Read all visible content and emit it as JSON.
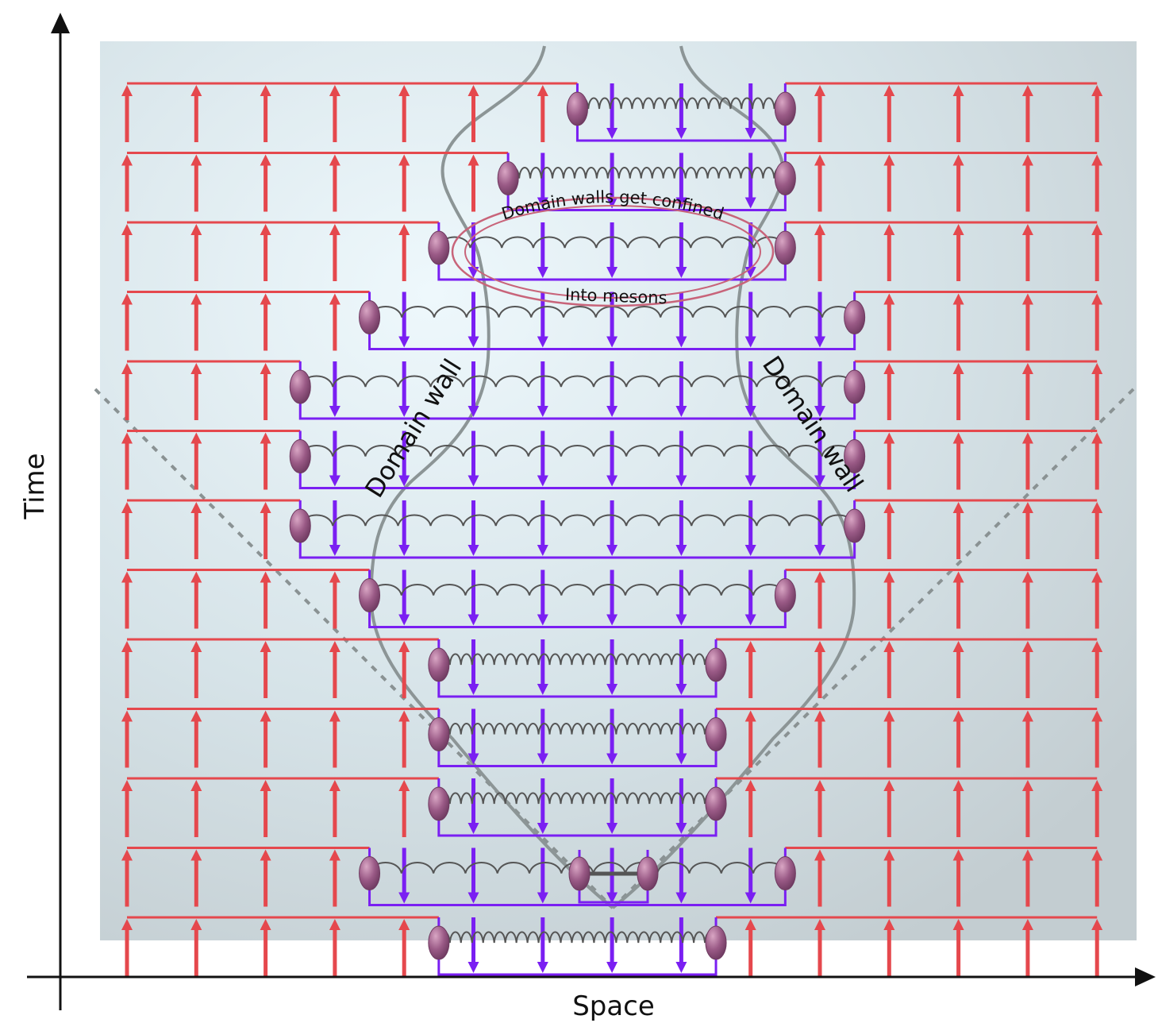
{
  "axes": {
    "x_label": "Space",
    "y_label": "Time"
  },
  "annotations": {
    "confined": "Domain walls get confined",
    "mesons": "Into mesons",
    "wall_left": "Domain wall",
    "wall_right": "Domain wall"
  },
  "lattice": {
    "sites": 15,
    "time_rows": 13,
    "flipped_domain_per_row": [
      [
        7,
        9
      ],
      [
        6,
        9
      ],
      [
        5,
        9
      ],
      [
        4,
        10
      ],
      [
        3,
        10
      ],
      [
        3,
        10
      ],
      [
        3,
        10
      ],
      [
        4,
        9
      ],
      [
        5,
        8
      ],
      [
        5,
        8
      ],
      [
        5,
        8
      ],
      [
        4,
        9
      ],
      [
        5,
        8
      ]
    ]
  },
  "colors": {
    "spin_up": "#e5484d",
    "spin_down": "#7a1ff2",
    "domain_wall_particle": "#9a5a86",
    "string": "#555555",
    "outline": "#8c9596",
    "light_cone": "#8a9293",
    "ellipse": "#c8647a",
    "background_center": "#eaf6fb",
    "background_edge": "#c4ced2"
  }
}
